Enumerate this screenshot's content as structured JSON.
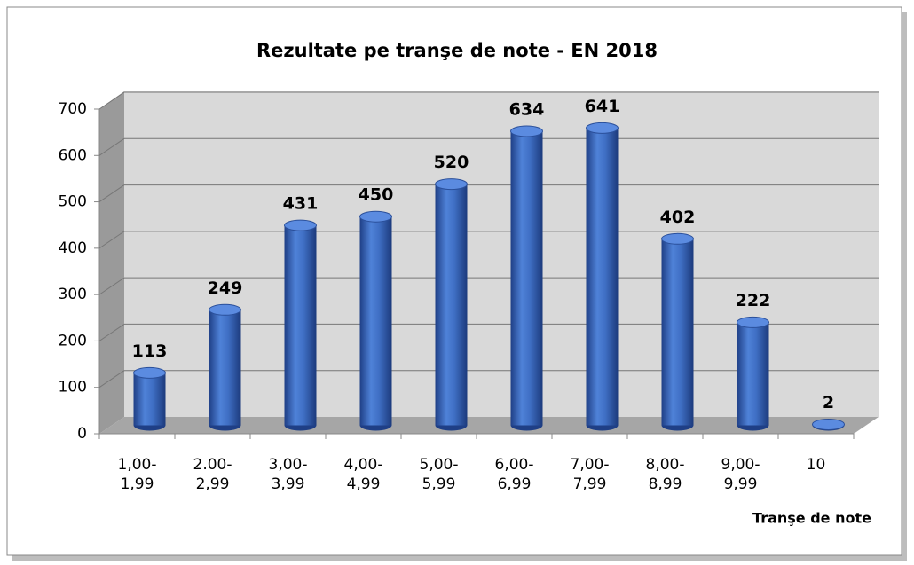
{
  "chart_data": {
    "type": "bar3d",
    "title": "Rezultate pe tranşe de note - EN 2018",
    "x_label": "Tranşe de note",
    "categories": [
      "1,00-\n1,99",
      "2.00-\n2,99",
      "3,00-\n3,99",
      "4,00-\n4,99",
      "5,00-\n5,99",
      "6,00-\n6,99",
      "7,00-\n7,99",
      "8,00-\n8,99",
      "9,00-\n9,99",
      "10"
    ],
    "values": [
      113,
      249,
      431,
      450,
      520,
      634,
      641,
      402,
      222,
      2
    ],
    "color": "#3f6fc4",
    "ylim": [
      0,
      700
    ],
    "yticks": [
      0,
      100,
      200,
      300,
      400,
      500,
      600,
      700
    ],
    "grid": true
  }
}
